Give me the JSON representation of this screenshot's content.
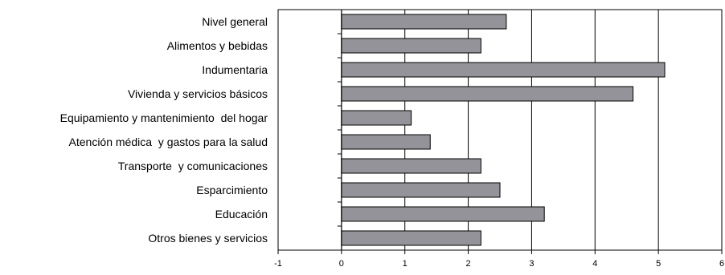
{
  "chart_data": {
    "type": "bar",
    "orientation": "horizontal",
    "categories": [
      "Nivel general",
      "Alimentos y bebidas",
      "Indumentaria",
      "Vivienda y servicios básicos",
      "Equipamiento y mantenimiento  del hogar",
      "Atención médica  y gastos para la salud",
      "Transporte  y comunicaciones",
      "Esparcimiento",
      "Educación",
      "Otros bienes y servicios"
    ],
    "values": [
      2.6,
      2.2,
      5.1,
      4.6,
      1.1,
      1.4,
      2.2,
      2.5,
      3.2,
      2.2
    ],
    "xlim": [
      -1,
      6
    ],
    "x_ticks": [
      "-1",
      "0",
      "1",
      "2",
      "3",
      "4",
      "5",
      "6"
    ],
    "title": "",
    "xlabel": "",
    "ylabel": "",
    "grid": "vertical",
    "legend": "none",
    "colors": {
      "bar_fill": "#939399",
      "bar_stroke": "#000000",
      "grid": "#000000",
      "text": "#000000"
    }
  }
}
